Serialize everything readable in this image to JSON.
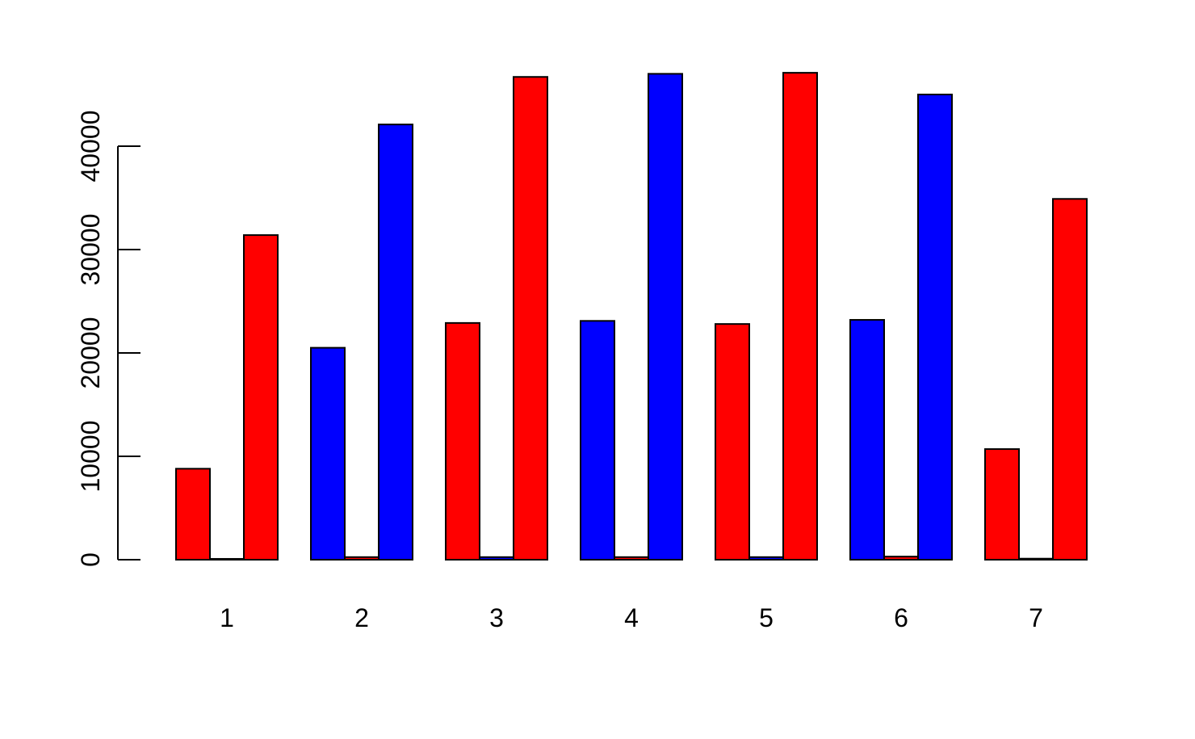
{
  "chart_data": {
    "type": "bar",
    "categories": [
      "1",
      "2",
      "3",
      "4",
      "5",
      "6",
      "7"
    ],
    "groups": [
      {
        "category": "1",
        "bars": [
          {
            "value": 8800,
            "color": "#ff0000"
          },
          {
            "value": 80,
            "color": "#0000ff"
          },
          {
            "value": 31400,
            "color": "#ff0000"
          }
        ]
      },
      {
        "category": "2",
        "bars": [
          {
            "value": 20500,
            "color": "#0000ff"
          },
          {
            "value": 250,
            "color": "#ff0000"
          },
          {
            "value": 42100,
            "color": "#0000ff"
          }
        ]
      },
      {
        "category": "3",
        "bars": [
          {
            "value": 22900,
            "color": "#ff0000"
          },
          {
            "value": 250,
            "color": "#0000ff"
          },
          {
            "value": 46700,
            "color": "#ff0000"
          }
        ]
      },
      {
        "category": "4",
        "bars": [
          {
            "value": 23100,
            "color": "#0000ff"
          },
          {
            "value": 250,
            "color": "#ff0000"
          },
          {
            "value": 47000,
            "color": "#0000ff"
          }
        ]
      },
      {
        "category": "5",
        "bars": [
          {
            "value": 22800,
            "color": "#ff0000"
          },
          {
            "value": 250,
            "color": "#0000ff"
          },
          {
            "value": 47100,
            "color": "#ff0000"
          }
        ]
      },
      {
        "category": "6",
        "bars": [
          {
            "value": 23200,
            "color": "#0000ff"
          },
          {
            "value": 300,
            "color": "#ff0000"
          },
          {
            "value": 45000,
            "color": "#0000ff"
          }
        ]
      },
      {
        "category": "7",
        "bars": [
          {
            "value": 10700,
            "color": "#ff0000"
          },
          {
            "value": 100,
            "color": "#0000ff"
          },
          {
            "value": 34900,
            "color": "#ff0000"
          }
        ]
      }
    ],
    "yticks": [
      0,
      10000,
      20000,
      30000,
      40000
    ],
    "ytick_labels": [
      "0",
      "10000",
      "20000",
      "30000",
      "40000"
    ],
    "title": "",
    "xlabel": "",
    "ylabel": "",
    "grid": false,
    "legend": "none"
  }
}
